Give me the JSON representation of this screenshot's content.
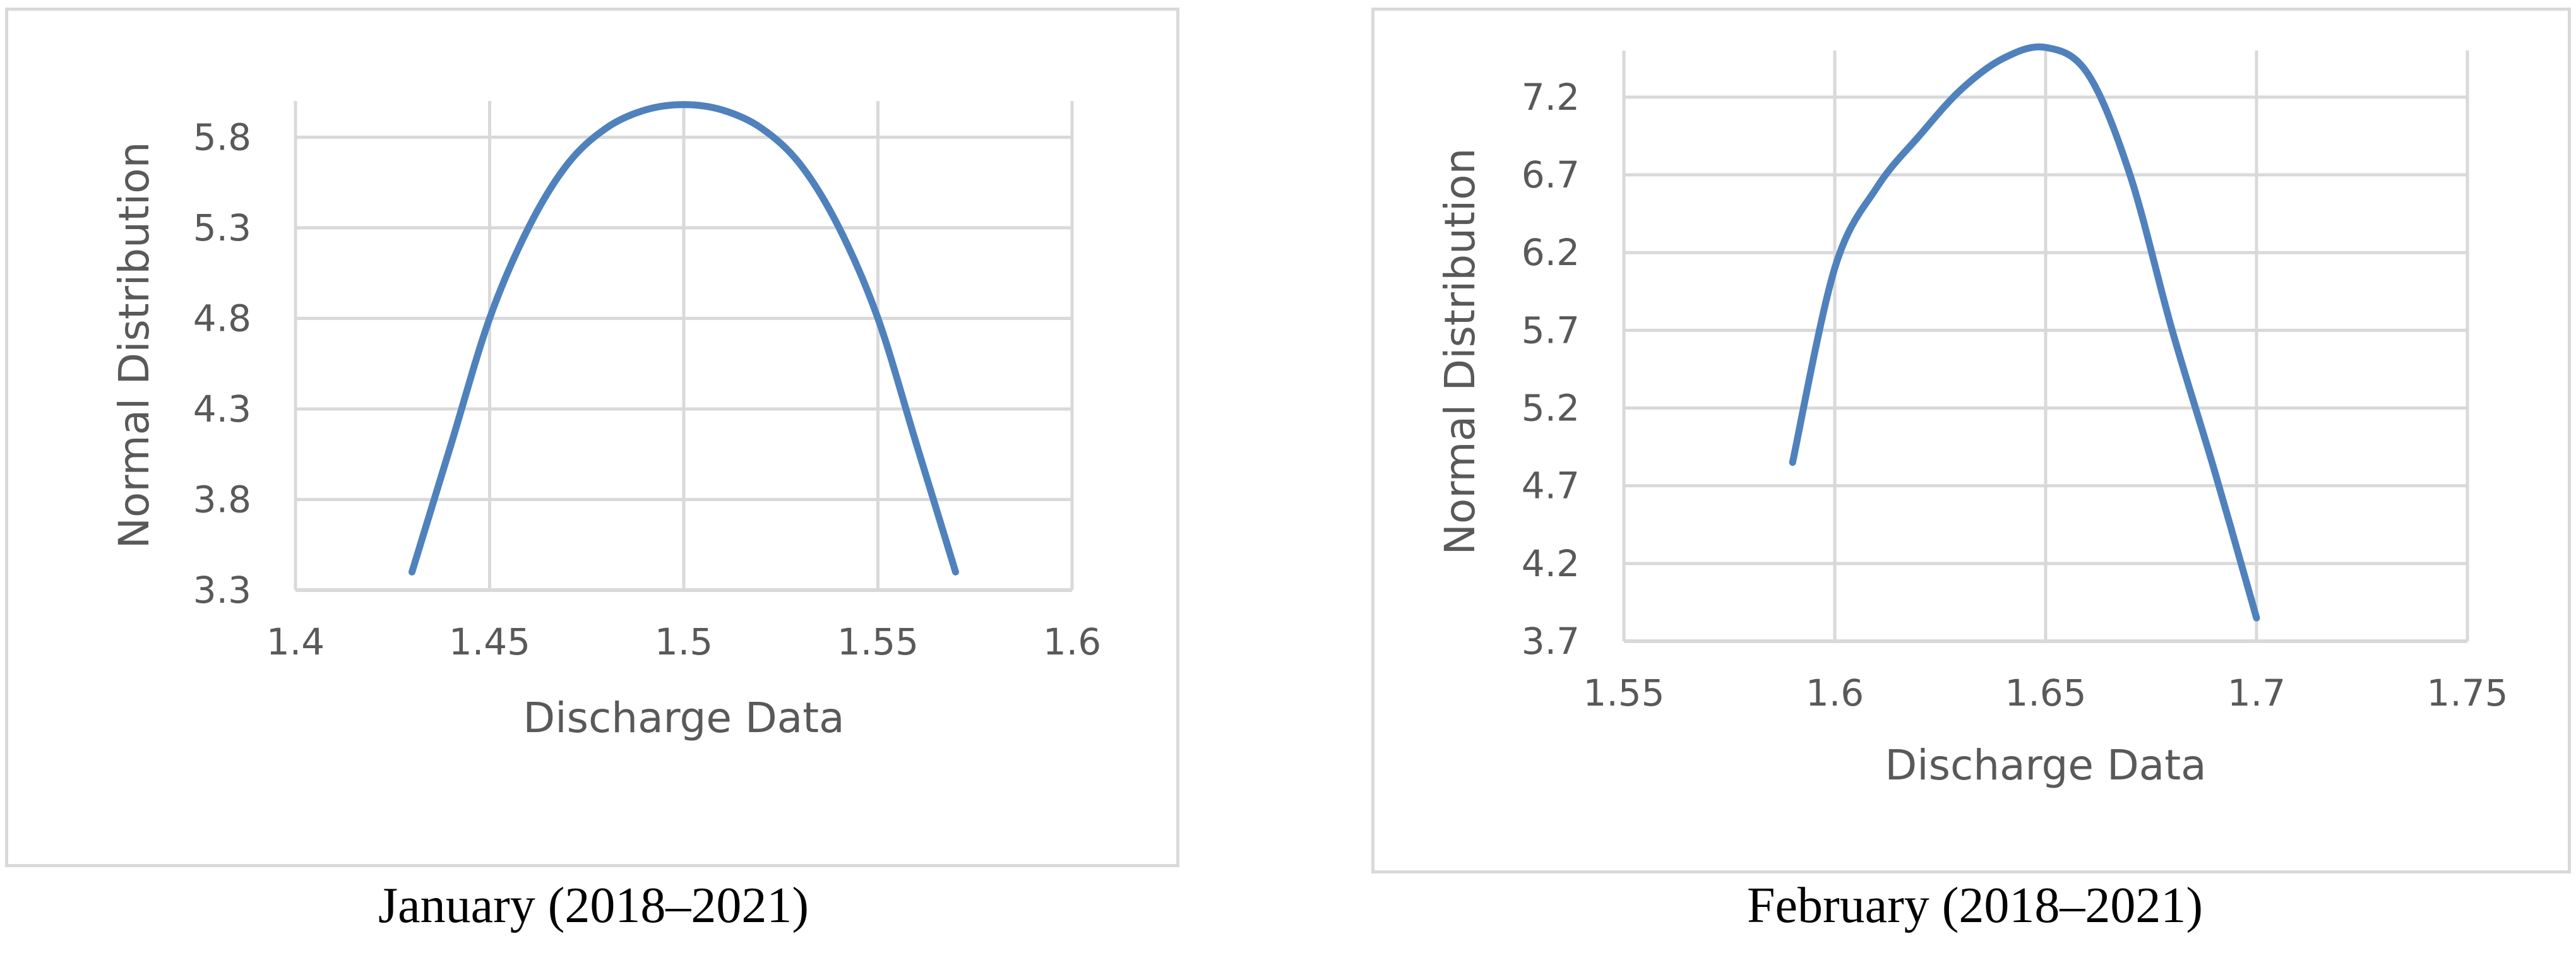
{
  "colors": {
    "series_line": "#4f81bd",
    "grid": "#d9d9d9",
    "tick_text": "#595959",
    "frame_border": "#d9d9d9"
  },
  "chart_data": [
    {
      "type": "line",
      "caption": "January (2018–2021)",
      "title": "",
      "xlabel": "Discharge Data",
      "ylabel": "Normal Distribution",
      "xlim": [
        1.4,
        1.6
      ],
      "ylim": [
        3.3,
        6.0
      ],
      "xticks": [
        "1.4",
        "1.45",
        "1.5",
        "1.55",
        "1.6"
      ],
      "yticks": [
        "3.3",
        "3.8",
        "4.3",
        "4.8",
        "5.3",
        "5.8"
      ],
      "grid": true,
      "series": [
        {
          "x": [
            1.43,
            1.44,
            1.45,
            1.46,
            1.47,
            1.48,
            1.49,
            1.5,
            1.51,
            1.52,
            1.53,
            1.54,
            1.55,
            1.56,
            1.57
          ],
          "y": [
            3.4,
            4.1,
            4.8,
            5.3,
            5.65,
            5.85,
            5.95,
            5.98,
            5.95,
            5.85,
            5.65,
            5.3,
            4.8,
            4.1,
            3.4
          ]
        }
      ]
    },
    {
      "type": "line",
      "caption": "February (2018–2021)",
      "title": "",
      "xlabel": "Discharge Data",
      "ylabel": "Normal Distribution",
      "xlim": [
        1.55,
        1.75
      ],
      "ylim": [
        3.7,
        7.5
      ],
      "xticks": [
        "1.55",
        "1.6",
        "1.65",
        "1.7",
        "1.75"
      ],
      "yticks": [
        "3.7",
        "4.2",
        "4.7",
        "5.2",
        "5.7",
        "6.2",
        "6.7",
        "7.2"
      ],
      "grid": true,
      "series": [
        {
          "x": [
            1.59,
            1.6,
            1.61,
            1.62,
            1.63,
            1.64,
            1.65,
            1.66,
            1.67,
            1.68,
            1.69,
            1.7
          ],
          "y": [
            4.85,
            6.1,
            6.62,
            6.95,
            7.25,
            7.45,
            7.52,
            7.35,
            6.7,
            5.7,
            4.8,
            3.85
          ]
        }
      ]
    }
  ]
}
